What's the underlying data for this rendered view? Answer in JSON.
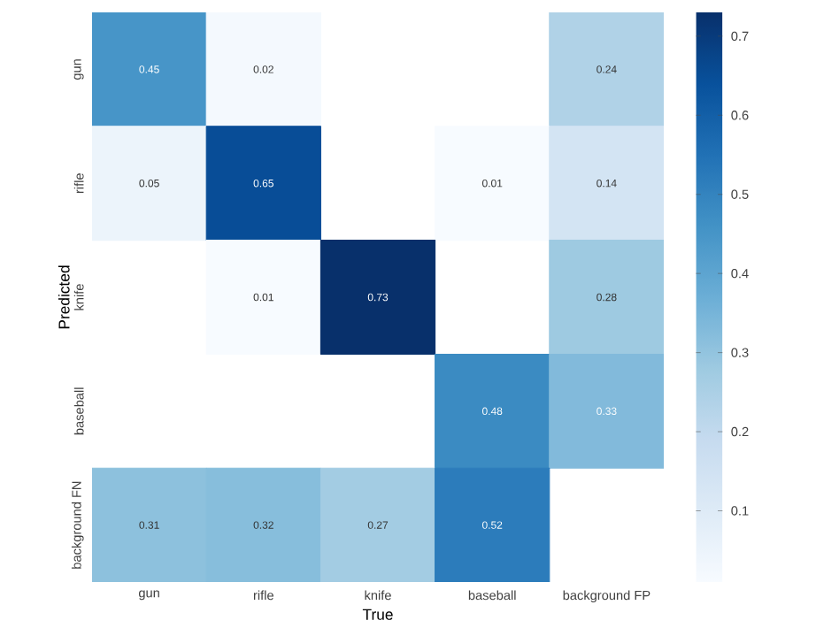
{
  "chart_data": {
    "type": "heatmap",
    "xlabel": "True",
    "ylabel": "Predicted",
    "categories": [
      "gun",
      "rifle",
      "knife",
      "baseball",
      "background FP"
    ],
    "y_categories": [
      "gun",
      "rifle",
      "knife",
      "baseball",
      "background FN"
    ],
    "cells": [
      [
        0.45,
        0.02,
        null,
        null,
        0.24
      ],
      [
        0.05,
        0.65,
        null,
        0.01,
        0.14
      ],
      [
        null,
        0.01,
        0.73,
        null,
        0.28
      ],
      [
        null,
        null,
        null,
        0.48,
        0.33
      ],
      [
        0.31,
        0.32,
        0.27,
        0.52,
        null
      ]
    ],
    "data_labels": true,
    "clim": [
      0.01,
      0.73
    ],
    "cticks": [
      0.1,
      0.2,
      0.3,
      0.4,
      0.5,
      0.6,
      0.7
    ]
  }
}
